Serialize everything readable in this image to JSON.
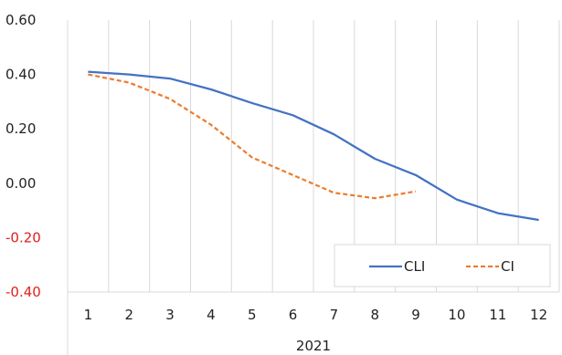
{
  "chart_data": {
    "type": "line",
    "title": "",
    "xlabel": "2021",
    "ylabel": "",
    "categories": [
      "1",
      "2",
      "3",
      "4",
      "5",
      "6",
      "7",
      "8",
      "9",
      "10",
      "11",
      "12"
    ],
    "ylim": [
      -0.4,
      0.6
    ],
    "yticks": [
      "0.60",
      "0.40",
      "0.20",
      "0.00",
      "-0.20",
      "-0.40"
    ],
    "negative_tick_color": "#e02020",
    "grid": {
      "vertical": true,
      "horizontal": false
    },
    "legend_position": "bottom-right",
    "series": [
      {
        "name": "CLI",
        "color": "#4472c4",
        "dash": "solid",
        "values": [
          0.41,
          0.4,
          0.385,
          0.345,
          0.295,
          0.25,
          0.18,
          0.09,
          0.03,
          -0.06,
          -0.11,
          -0.135
        ]
      },
      {
        "name": "CI",
        "color": "#ed7d31",
        "dash": "dashed",
        "values": [
          0.4,
          0.37,
          0.31,
          0.215,
          0.095,
          0.03,
          -0.035,
          -0.055,
          -0.03,
          null,
          null,
          null
        ]
      }
    ]
  }
}
